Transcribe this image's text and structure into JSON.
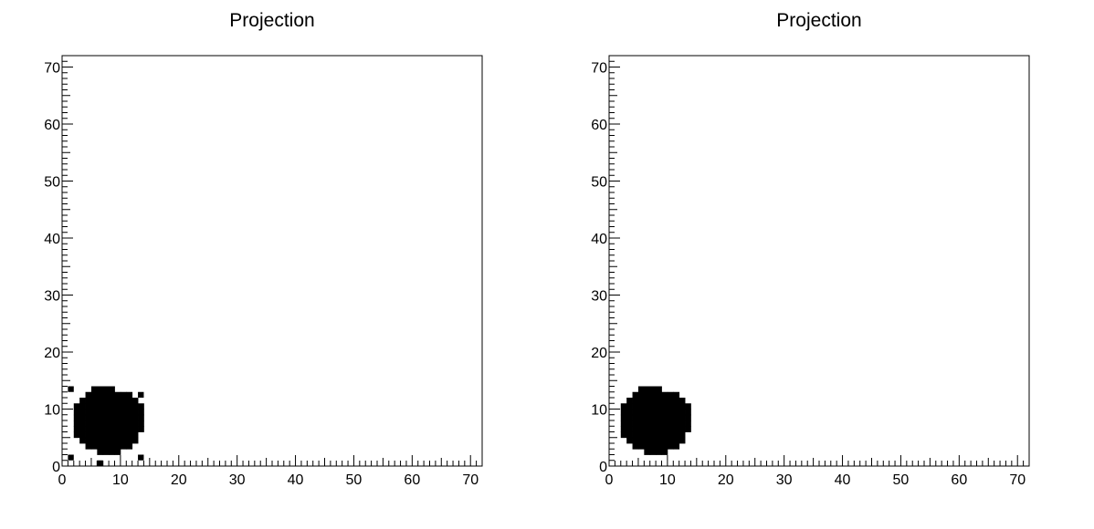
{
  "chart_data": [
    {
      "type": "heatmap",
      "title": "Projection",
      "xlabel": "",
      "ylabel": "",
      "xlim": [
        0,
        72
      ],
      "ylim": [
        0,
        72
      ],
      "xticks": [
        "0",
        "10",
        "20",
        "30",
        "40",
        "50",
        "60",
        "70"
      ],
      "yticks": [
        "0",
        "10",
        "20",
        "30",
        "40",
        "50",
        "60",
        "70"
      ],
      "fill_color": "#000000",
      "blob": {
        "rows": [
          {
            "y": 2,
            "x0": 6,
            "x1": 9
          },
          {
            "y": 3,
            "x0": 4,
            "x1": 11
          },
          {
            "y": 4,
            "x0": 3,
            "x1": 12
          },
          {
            "y": 5,
            "x0": 2,
            "x1": 12
          },
          {
            "y": 6,
            "x0": 2,
            "x1": 13
          },
          {
            "y": 7,
            "x0": 2,
            "x1": 13
          },
          {
            "y": 8,
            "x0": 2,
            "x1": 13
          },
          {
            "y": 9,
            "x0": 2,
            "x1": 13
          },
          {
            "y": 10,
            "x0": 2,
            "x1": 13
          },
          {
            "y": 11,
            "x0": 3,
            "x1": 12
          },
          {
            "y": 12,
            "x0": 4,
            "x1": 11
          },
          {
            "y": 13,
            "x0": 5,
            "x1": 8
          }
        ]
      },
      "outliers": [
        [
          1,
          13
        ],
        [
          13,
          12
        ],
        [
          1,
          1
        ],
        [
          13,
          1
        ],
        [
          6,
          0
        ]
      ]
    },
    {
      "type": "heatmap",
      "title": "Projection",
      "xlabel": "",
      "ylabel": "",
      "xlim": [
        0,
        72
      ],
      "ylim": [
        0,
        72
      ],
      "xticks": [
        "0",
        "10",
        "20",
        "30",
        "40",
        "50",
        "60",
        "70"
      ],
      "yticks": [
        "0",
        "10",
        "20",
        "30",
        "40",
        "50",
        "60",
        "70"
      ],
      "fill_color": "#000000",
      "blob": {
        "rows": [
          {
            "y": 2,
            "x0": 6,
            "x1": 9
          },
          {
            "y": 3,
            "x0": 4,
            "x1": 11
          },
          {
            "y": 4,
            "x0": 3,
            "x1": 12
          },
          {
            "y": 5,
            "x0": 2,
            "x1": 12
          },
          {
            "y": 6,
            "x0": 2,
            "x1": 13
          },
          {
            "y": 7,
            "x0": 2,
            "x1": 13
          },
          {
            "y": 8,
            "x0": 2,
            "x1": 13
          },
          {
            "y": 9,
            "x0": 2,
            "x1": 13
          },
          {
            "y": 10,
            "x0": 2,
            "x1": 13
          },
          {
            "y": 11,
            "x0": 3,
            "x1": 12
          },
          {
            "y": 12,
            "x0": 4,
            "x1": 11
          },
          {
            "y": 13,
            "x0": 5,
            "x1": 8
          }
        ]
      },
      "outliers": []
    }
  ]
}
